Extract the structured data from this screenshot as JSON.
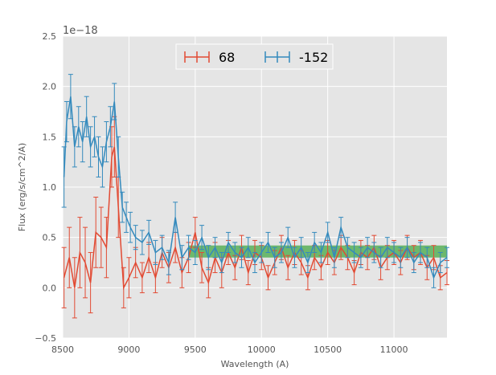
{
  "chart_data": {
    "type": "line",
    "title": "",
    "xlabel": "Wavelength (A)",
    "ylabel": "Flux (erg/s/cm^2/A)",
    "y_offset_label": "1e−18",
    "xlim": [
      8500,
      11400
    ],
    "ylim": [
      -0.5,
      2.5
    ],
    "xticks": [
      8500,
      9000,
      9500,
      10000,
      10500,
      11000
    ],
    "xtick_labels": [
      "8500",
      "9000",
      "9500",
      "10000",
      "10500",
      "11000"
    ],
    "yticks": [
      -0.5,
      0.0,
      0.5,
      1.0,
      1.5,
      2.0,
      2.5
    ],
    "ytick_labels": [
      "−0.5",
      "0.0",
      "0.5",
      "1.0",
      "1.5",
      "2.0",
      "2.5"
    ],
    "grid": true,
    "legend_position": "top-center",
    "band": {
      "x": [
        9450,
        11400
      ],
      "y": [
        0.3,
        0.42
      ],
      "color": "#2ca02c",
      "label": ""
    },
    "series": [
      {
        "name": "68",
        "color": "#e24a33",
        "x": [
          8510,
          8550,
          8590,
          8630,
          8670,
          8710,
          8750,
          8790,
          8830,
          8870,
          8890,
          8920,
          8960,
          9000,
          9050,
          9100,
          9150,
          9200,
          9250,
          9300,
          9350,
          9400,
          9450,
          9500,
          9550,
          9600,
          9650,
          9700,
          9750,
          9800,
          9850,
          9900,
          9950,
          10000,
          10050,
          10100,
          10150,
          10200,
          10250,
          10300,
          10350,
          10400,
          10450,
          10500,
          10550,
          10600,
          10650,
          10700,
          10750,
          10800,
          10850,
          10900,
          10950,
          11000,
          11050,
          11100,
          11150,
          11200,
          11250,
          11300,
          11350,
          11400
        ],
        "y": [
          0.1,
          0.3,
          0.0,
          0.35,
          0.25,
          0.05,
          0.55,
          0.5,
          0.4,
          1.3,
          1.4,
          0.8,
          0.0,
          0.1,
          0.25,
          0.1,
          0.3,
          0.1,
          0.35,
          0.2,
          0.4,
          0.15,
          0.3,
          0.55,
          0.2,
          0.05,
          0.3,
          0.15,
          0.35,
          0.2,
          0.4,
          0.15,
          0.35,
          0.3,
          0.1,
          0.25,
          0.4,
          0.2,
          0.35,
          0.25,
          0.1,
          0.3,
          0.2,
          0.35,
          0.25,
          0.4,
          0.3,
          0.15,
          0.35,
          0.3,
          0.4,
          0.2,
          0.3,
          0.35,
          0.25,
          0.4,
          0.3,
          0.35,
          0.2,
          0.3,
          0.1,
          0.15
        ],
        "yerr": [
          0.3,
          0.3,
          0.3,
          0.35,
          0.35,
          0.3,
          0.35,
          0.3,
          0.3,
          0.3,
          0.3,
          0.3,
          0.2,
          0.2,
          0.15,
          0.15,
          0.15,
          0.15,
          0.15,
          0.15,
          0.15,
          0.15,
          0.15,
          0.15,
          0.15,
          0.15,
          0.15,
          0.15,
          0.12,
          0.12,
          0.12,
          0.12,
          0.12,
          0.12,
          0.12,
          0.12,
          0.12,
          0.12,
          0.12,
          0.12,
          0.12,
          0.12,
          0.12,
          0.12,
          0.12,
          0.12,
          0.12,
          0.12,
          0.12,
          0.12,
          0.12,
          0.12,
          0.12,
          0.12,
          0.12,
          0.12,
          0.12,
          0.12,
          0.12,
          0.12,
          0.12,
          0.12
        ]
      },
      {
        "name": "-152",
        "color": "#348abd",
        "x": [
          8510,
          8530,
          8560,
          8590,
          8620,
          8650,
          8680,
          8710,
          8740,
          8770,
          8800,
          8830,
          8860,
          8890,
          8920,
          8950,
          8980,
          9010,
          9050,
          9100,
          9150,
          9200,
          9250,
          9300,
          9350,
          9400,
          9450,
          9500,
          9550,
          9600,
          9650,
          9700,
          9750,
          9800,
          9850,
          9900,
          9950,
          10000,
          10050,
          10100,
          10150,
          10200,
          10250,
          10300,
          10350,
          10400,
          10450,
          10500,
          10550,
          10600,
          10650,
          10700,
          10750,
          10800,
          10850,
          10900,
          10950,
          11000,
          11050,
          11100,
          11150,
          11200,
          11250,
          11300,
          11350,
          11400
        ],
        "y": [
          1.1,
          1.65,
          1.9,
          1.4,
          1.6,
          1.45,
          1.7,
          1.4,
          1.5,
          1.3,
          1.2,
          1.45,
          1.6,
          1.85,
          1.3,
          0.8,
          0.7,
          0.6,
          0.5,
          0.45,
          0.55,
          0.35,
          0.4,
          0.25,
          0.7,
          0.3,
          0.4,
          0.35,
          0.5,
          0.3,
          0.4,
          0.25,
          0.45,
          0.35,
          0.3,
          0.4,
          0.25,
          0.35,
          0.45,
          0.3,
          0.35,
          0.5,
          0.3,
          0.4,
          0.25,
          0.45,
          0.35,
          0.55,
          0.3,
          0.6,
          0.4,
          0.35,
          0.3,
          0.4,
          0.35,
          0.3,
          0.4,
          0.35,
          0.3,
          0.4,
          0.25,
          0.35,
          0.3,
          0.1,
          0.25,
          0.3
        ],
        "yerr": [
          0.3,
          0.2,
          0.22,
          0.2,
          0.2,
          0.2,
          0.2,
          0.2,
          0.2,
          0.2,
          0.2,
          0.2,
          0.2,
          0.18,
          0.2,
          0.15,
          0.15,
          0.15,
          0.12,
          0.12,
          0.12,
          0.12,
          0.12,
          0.12,
          0.15,
          0.12,
          0.12,
          0.12,
          0.12,
          0.12,
          0.1,
          0.1,
          0.1,
          0.1,
          0.1,
          0.1,
          0.1,
          0.1,
          0.1,
          0.1,
          0.1,
          0.1,
          0.1,
          0.1,
          0.1,
          0.1,
          0.1,
          0.1,
          0.1,
          0.1,
          0.1,
          0.1,
          0.1,
          0.1,
          0.1,
          0.1,
          0.1,
          0.1,
          0.1,
          0.1,
          0.1,
          0.1,
          0.1,
          0.1,
          0.1,
          0.1
        ]
      }
    ]
  },
  "colors": {
    "plot_background": "#e5e5e5",
    "grid": "#ffffff",
    "band": "#2ca02c"
  }
}
